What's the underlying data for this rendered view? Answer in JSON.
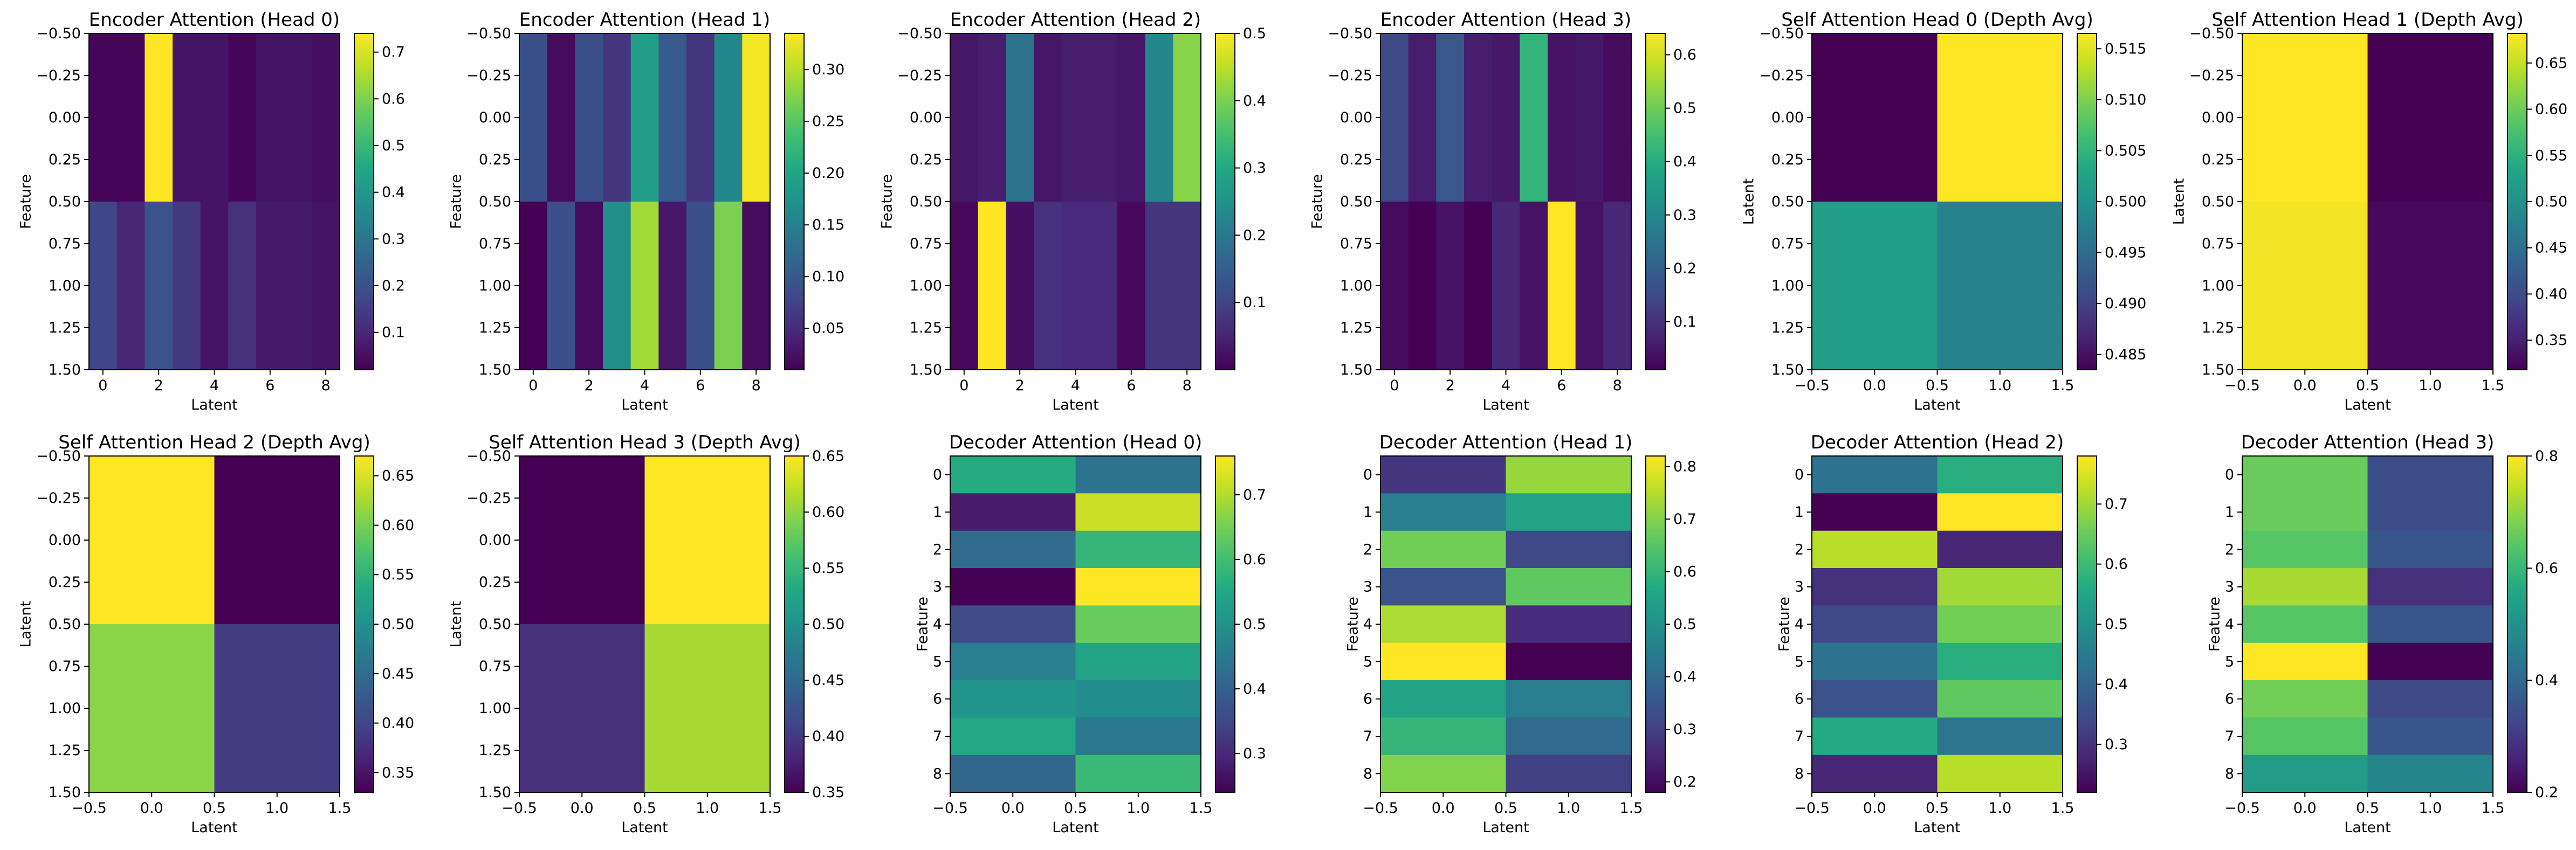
{
  "colormap": "viridis",
  "chart_data": [
    {
      "type": "heatmap",
      "title": "Encoder Attention (Head 0)",
      "xlabel": "Latent",
      "ylabel": "Feature",
      "x_ticks": [
        "0",
        "2",
        "4",
        "6",
        "8"
      ],
      "y_ticks": [
        "−0.50",
        "−0.25",
        "0.00",
        "0.25",
        "0.50",
        "0.75",
        "1.00",
        "1.25",
        "1.50"
      ],
      "xlim": [
        -0.5,
        8.5
      ],
      "ylim": [
        1.5,
        -0.5
      ],
      "colorbar_ticks": [
        "0.1",
        "0.2",
        "0.3",
        "0.4",
        "0.5",
        "0.6",
        "0.7"
      ],
      "vmin": 0.02,
      "vmax": 0.74,
      "values": [
        [
          0.03,
          0.03,
          0.74,
          0.06,
          0.06,
          0.03,
          0.06,
          0.06,
          0.05
        ],
        [
          0.17,
          0.1,
          0.2,
          0.14,
          0.06,
          0.12,
          0.07,
          0.07,
          0.06
        ]
      ]
    },
    {
      "type": "heatmap",
      "title": "Encoder Attention (Head 1)",
      "xlabel": "Latent",
      "ylabel": "Feature",
      "x_ticks": [
        "0",
        "2",
        "4",
        "6",
        "8"
      ],
      "y_ticks": [
        "−0.50",
        "−0.25",
        "0.00",
        "0.25",
        "0.50",
        "0.75",
        "1.00",
        "1.25",
        "1.50"
      ],
      "xlim": [
        -0.5,
        8.5
      ],
      "ylim": [
        1.5,
        -0.5
      ],
      "colorbar_ticks": [
        "0.05",
        "0.10",
        "0.15",
        "0.20",
        "0.25",
        "0.30"
      ],
      "vmin": 0.01,
      "vmax": 0.335,
      "values": [
        [
          0.09,
          0.02,
          0.09,
          0.06,
          0.19,
          0.1,
          0.06,
          0.16,
          0.33
        ],
        [
          0.01,
          0.09,
          0.02,
          0.17,
          0.29,
          0.03,
          0.09,
          0.27,
          0.02
        ]
      ]
    },
    {
      "type": "heatmap",
      "title": "Encoder Attention (Head 2)",
      "xlabel": "Latent",
      "ylabel": "Feature",
      "x_ticks": [
        "0",
        "2",
        "4",
        "6",
        "8"
      ],
      "y_ticks": [
        "−0.50",
        "−0.25",
        "0.00",
        "0.25",
        "0.50",
        "0.75",
        "1.00",
        "1.25",
        "1.50"
      ],
      "xlim": [
        -0.5,
        8.5
      ],
      "ylim": [
        1.5,
        -0.5
      ],
      "colorbar_ticks": [
        "0.1",
        "0.2",
        "0.3",
        "0.4",
        "0.5"
      ],
      "vmin": 0.0,
      "vmax": 0.5,
      "values": [
        [
          0.03,
          0.04,
          0.19,
          0.03,
          0.04,
          0.04,
          0.03,
          0.23,
          0.41
        ],
        [
          0.01,
          0.5,
          0.02,
          0.07,
          0.06,
          0.06,
          0.01,
          0.08,
          0.08
        ]
      ]
    },
    {
      "type": "heatmap",
      "title": "Encoder Attention (Head 3)",
      "xlabel": "Latent",
      "ylabel": "Feature",
      "x_ticks": [
        "0",
        "2",
        "4",
        "6",
        "8"
      ],
      "y_ticks": [
        "−0.50",
        "−0.25",
        "0.00",
        "0.25",
        "0.50",
        "0.75",
        "1.00",
        "1.25",
        "1.50"
      ],
      "xlim": [
        -0.5,
        8.5
      ],
      "ylim": [
        1.5,
        -0.5
      ],
      "colorbar_ticks": [
        "0.1",
        "0.2",
        "0.3",
        "0.4",
        "0.5",
        "0.6"
      ],
      "vmin": 0.01,
      "vmax": 0.64,
      "values": [
        [
          0.15,
          0.06,
          0.18,
          0.06,
          0.05,
          0.42,
          0.04,
          0.05,
          0.03
        ],
        [
          0.03,
          0.01,
          0.04,
          0.01,
          0.08,
          0.04,
          0.64,
          0.04,
          0.08
        ]
      ]
    },
    {
      "type": "heatmap",
      "title": "Self Attention Head 0 (Depth Avg)",
      "xlabel": "Latent",
      "ylabel": "Latent",
      "x_ticks": [
        "−0.5",
        "0.0",
        "0.5",
        "1.0",
        "1.5"
      ],
      "y_ticks": [
        "−0.50",
        "−0.25",
        "0.00",
        "0.25",
        "0.50",
        "0.75",
        "1.00",
        "1.25",
        "1.50"
      ],
      "xlim": [
        -0.5,
        1.5
      ],
      "ylim": [
        1.5,
        -0.5
      ],
      "colorbar_ticks": [
        "0.485",
        "0.490",
        "0.495",
        "0.500",
        "0.505",
        "0.510",
        "0.515"
      ],
      "vmin": 0.4835,
      "vmax": 0.5165,
      "values": [
        [
          0.4835,
          0.5165
        ],
        [
          0.502,
          0.498
        ]
      ]
    },
    {
      "type": "heatmap",
      "title": "Self Attention Head 1 (Depth Avg)",
      "xlabel": "Latent",
      "ylabel": "Latent",
      "x_ticks": [
        "−0.5",
        "0.0",
        "0.5",
        "1.0",
        "1.5"
      ],
      "y_ticks": [
        "−0.50",
        "−0.25",
        "0.00",
        "0.25",
        "0.50",
        "0.75",
        "1.00",
        "1.25",
        "1.50"
      ],
      "xlim": [
        -0.5,
        1.5
      ],
      "ylim": [
        1.5,
        -0.5
      ],
      "colorbar_ticks": [
        "0.35",
        "0.40",
        "0.45",
        "0.50",
        "0.55",
        "0.60",
        "0.65"
      ],
      "vmin": 0.318,
      "vmax": 0.682,
      "values": [
        [
          0.682,
          0.318
        ],
        [
          0.675,
          0.325
        ]
      ]
    },
    {
      "type": "heatmap",
      "title": "Self Attention Head 2 (Depth Avg)",
      "xlabel": "Latent",
      "ylabel": "Latent",
      "x_ticks": [
        "−0.5",
        "0.0",
        "0.5",
        "1.0",
        "1.5"
      ],
      "y_ticks": [
        "−0.50",
        "−0.25",
        "0.00",
        "0.25",
        "0.50",
        "0.75",
        "1.00",
        "1.25",
        "1.50"
      ],
      "xlim": [
        -0.5,
        1.5
      ],
      "ylim": [
        1.5,
        -0.5
      ],
      "colorbar_ticks": [
        "0.35",
        "0.40",
        "0.45",
        "0.50",
        "0.55",
        "0.60",
        "0.65"
      ],
      "vmin": 0.33,
      "vmax": 0.67,
      "values": [
        [
          0.67,
          0.33
        ],
        [
          0.61,
          0.39
        ]
      ]
    },
    {
      "type": "heatmap",
      "title": "Self Attention Head 3 (Depth Avg)",
      "xlabel": "Latent",
      "ylabel": "Latent",
      "x_ticks": [
        "−0.5",
        "0.0",
        "0.5",
        "1.0",
        "1.5"
      ],
      "y_ticks": [
        "−0.50",
        "−0.25",
        "0.00",
        "0.25",
        "0.50",
        "0.75",
        "1.00",
        "1.25",
        "1.50"
      ],
      "xlim": [
        -0.5,
        1.5
      ],
      "ylim": [
        1.5,
        -0.5
      ],
      "colorbar_ticks": [
        "0.35",
        "0.40",
        "0.45",
        "0.50",
        "0.55",
        "0.60",
        "0.65"
      ],
      "vmin": 0.35,
      "vmax": 0.65,
      "values": [
        [
          0.35,
          0.65
        ],
        [
          0.39,
          0.61
        ]
      ]
    },
    {
      "type": "heatmap",
      "title": "Decoder Attention (Head 0)",
      "xlabel": "Latent",
      "ylabel": "Feature",
      "x_ticks": [
        "−0.5",
        "0.0",
        "0.5",
        "1.0",
        "1.5"
      ],
      "y_ticks": [
        "0",
        "1",
        "2",
        "3",
        "4",
        "5",
        "6",
        "7",
        "8"
      ],
      "xlim": [
        -0.5,
        1.5
      ],
      "ylim": [
        8.5,
        -0.5
      ],
      "colorbar_ticks": [
        "0.3",
        "0.4",
        "0.5",
        "0.6",
        "0.7"
      ],
      "vmin": 0.24,
      "vmax": 0.76,
      "values": [
        [
          0.56,
          0.44
        ],
        [
          0.28,
          0.72
        ],
        [
          0.42,
          0.58
        ],
        [
          0.24,
          0.76
        ],
        [
          0.36,
          0.64
        ],
        [
          0.46,
          0.54
        ],
        [
          0.51,
          0.49
        ],
        [
          0.55,
          0.45
        ],
        [
          0.41,
          0.59
        ]
      ]
    },
    {
      "type": "heatmap",
      "title": "Decoder Attention (Head 1)",
      "xlabel": "Latent",
      "ylabel": "Feature",
      "x_ticks": [
        "−0.5",
        "0.0",
        "0.5",
        "1.0",
        "1.5"
      ],
      "y_ticks": [
        "0",
        "1",
        "2",
        "3",
        "4",
        "5",
        "6",
        "7",
        "8"
      ],
      "xlim": [
        -0.5,
        1.5
      ],
      "ylim": [
        8.5,
        -0.5
      ],
      "colorbar_ticks": [
        "0.2",
        "0.3",
        "0.4",
        "0.5",
        "0.6",
        "0.7",
        "0.8"
      ],
      "vmin": 0.18,
      "vmax": 0.82,
      "values": [
        [
          0.28,
          0.72
        ],
        [
          0.45,
          0.55
        ],
        [
          0.68,
          0.32
        ],
        [
          0.34,
          0.66
        ],
        [
          0.74,
          0.26
        ],
        [
          0.82,
          0.18
        ],
        [
          0.55,
          0.45
        ],
        [
          0.6,
          0.4
        ],
        [
          0.7,
          0.3
        ]
      ]
    },
    {
      "type": "heatmap",
      "title": "Decoder Attention (Head 2)",
      "xlabel": "Latent",
      "ylabel": "Feature",
      "x_ticks": [
        "−0.5",
        "0.0",
        "0.5",
        "1.0",
        "1.5"
      ],
      "y_ticks": [
        "0",
        "1",
        "2",
        "3",
        "4",
        "5",
        "6",
        "7",
        "8"
      ],
      "xlim": [
        -0.5,
        1.5
      ],
      "ylim": [
        8.5,
        -0.5
      ],
      "colorbar_ticks": [
        "0.3",
        "0.4",
        "0.5",
        "0.6",
        "0.7"
      ],
      "vmin": 0.22,
      "vmax": 0.78,
      "values": [
        [
          0.43,
          0.57
        ],
        [
          0.22,
          0.78
        ],
        [
          0.72,
          0.28
        ],
        [
          0.3,
          0.7
        ],
        [
          0.34,
          0.66
        ],
        [
          0.43,
          0.57
        ],
        [
          0.36,
          0.64
        ],
        [
          0.56,
          0.44
        ],
        [
          0.28,
          0.72
        ]
      ]
    },
    {
      "type": "heatmap",
      "title": "Decoder Attention (Head 3)",
      "xlabel": "Latent",
      "ylabel": "Feature",
      "x_ticks": [
        "−0.5",
        "0.0",
        "0.5",
        "1.0",
        "1.5"
      ],
      "y_ticks": [
        "0",
        "1",
        "2",
        "3",
        "4",
        "5",
        "6",
        "7",
        "8"
      ],
      "xlim": [
        -0.5,
        1.5
      ],
      "ylim": [
        8.5,
        -0.5
      ],
      "colorbar_ticks": [
        "0.2",
        "0.4",
        "0.6",
        "0.8"
      ],
      "vmin": 0.2,
      "vmax": 0.8,
      "values": [
        [
          0.66,
          0.34
        ],
        [
          0.66,
          0.34
        ],
        [
          0.64,
          0.36
        ],
        [
          0.72,
          0.28
        ],
        [
          0.64,
          0.36
        ],
        [
          0.8,
          0.2
        ],
        [
          0.67,
          0.33
        ],
        [
          0.64,
          0.36
        ],
        [
          0.53,
          0.47
        ]
      ]
    }
  ]
}
